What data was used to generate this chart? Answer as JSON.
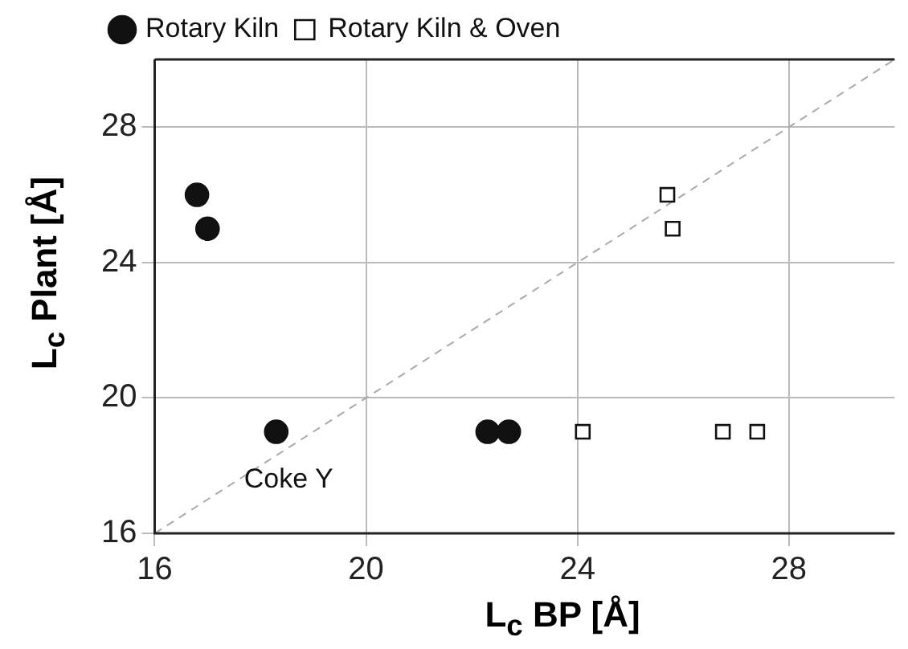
{
  "chart_data": {
    "type": "scatter",
    "xlabel": "L$_{c}$ BP [Å]",
    "ylabel": "L$_{c}$ Plant [Å]",
    "xlim": [
      16,
      30
    ],
    "xticks": [
      16,
      20,
      24,
      28
    ],
    "ylim": [
      16,
      30
    ],
    "yticks": [
      16,
      20,
      24,
      28
    ],
    "grid": true,
    "legend": "top left",
    "series": [
      {
        "name": "Rotary Kiln",
        "color": "#111111",
        "marker": "circle",
        "x": [
          16.8,
          17.0,
          18.3,
          22.3,
          22.7
        ],
        "values": [
          26,
          25,
          19,
          19,
          19
        ]
      },
      {
        "name": "Rotary Kiln & Oven",
        "color": "#111111",
        "marker": "square",
        "x": [
          25.7,
          25.8,
          24.1,
          26.75,
          27.4
        ],
        "values": [
          26,
          25,
          19,
          19,
          19
        ]
      },
      {
        "type": "line",
        "color": "#aaaaaa",
        "line_style": "dashed",
        "marker": "none",
        "x": [
          16,
          30
        ],
        "values": [
          16,
          30
        ]
      }
    ],
    "annotations": [
      {
        "text": "Coke Y",
        "x": 18.3,
        "y": 19
      }
    ]
  }
}
